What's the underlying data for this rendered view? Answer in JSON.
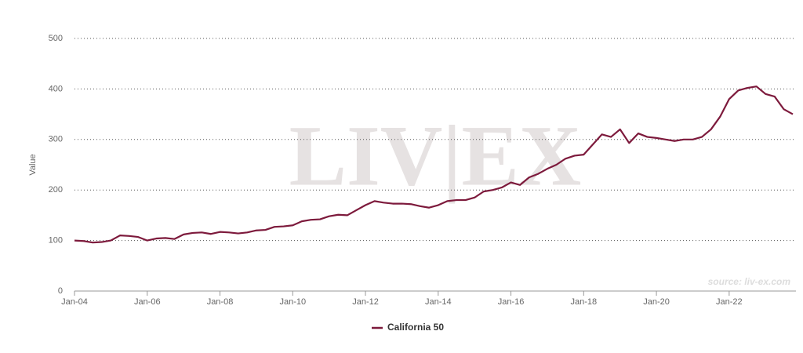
{
  "chart_data": {
    "type": "line",
    "watermark": "LIV|EX",
    "source": "source: liv-ex.com",
    "y_label": "Value",
    "x": [
      "Jan-04",
      "Apr-04",
      "Jul-04",
      "Oct-04",
      "Jan-05",
      "Apr-05",
      "Jul-05",
      "Oct-05",
      "Jan-06",
      "Apr-06",
      "Jul-06",
      "Oct-06",
      "Jan-07",
      "Apr-07",
      "Jul-07",
      "Oct-07",
      "Jan-08",
      "Apr-08",
      "Jul-08",
      "Oct-08",
      "Jan-09",
      "Apr-09",
      "Jul-09",
      "Oct-09",
      "Jan-10",
      "Apr-10",
      "Jul-10",
      "Oct-10",
      "Jan-11",
      "Apr-11",
      "Jul-11",
      "Oct-11",
      "Jan-12",
      "Apr-12",
      "Jul-12",
      "Oct-12",
      "Jan-13",
      "Apr-13",
      "Jul-13",
      "Oct-13",
      "Jan-14",
      "Apr-14",
      "Jul-14",
      "Oct-14",
      "Jan-15",
      "Apr-15",
      "Jul-15",
      "Oct-15",
      "Jan-16",
      "Apr-16",
      "Jul-16",
      "Oct-16",
      "Jan-17",
      "Apr-17",
      "Jul-17",
      "Oct-17",
      "Jan-18",
      "Apr-18",
      "Jul-18",
      "Oct-18",
      "Jan-19",
      "Apr-19",
      "Jul-19",
      "Oct-19",
      "Jan-20",
      "Apr-20",
      "Jul-20",
      "Oct-20",
      "Jan-21",
      "Apr-21",
      "Jul-21",
      "Oct-21",
      "Jan-22",
      "Apr-22",
      "Jul-22",
      "Oct-22",
      "Jan-23",
      "Apr-23",
      "Jul-23",
      "Oct-23"
    ],
    "series": [
      {
        "name": "California 50",
        "color": "#7d1a3c",
        "values": [
          100,
          99,
          96,
          97,
          100,
          110,
          109,
          107,
          100,
          104,
          105,
          103,
          112,
          115,
          116,
          113,
          117,
          116,
          114,
          116,
          120,
          121,
          127,
          128,
          130,
          138,
          141,
          142,
          148,
          151,
          150,
          160,
          170,
          178,
          175,
          173,
          173,
          172,
          168,
          165,
          170,
          178,
          180,
          180,
          185,
          197,
          200,
          205,
          215,
          210,
          225,
          232,
          242,
          250,
          262,
          268,
          270,
          290,
          310,
          305,
          320,
          293,
          312,
          305,
          303,
          300,
          297,
          300,
          300,
          305,
          320,
          345,
          380,
          397,
          402,
          405,
          390,
          385,
          360,
          350
        ]
      }
    ],
    "xlim": [
      "Jan-04",
      "Oct-23"
    ],
    "xticks": [
      "Jan-04",
      "Jan-06",
      "Jan-08",
      "Jan-10",
      "Jan-12",
      "Jan-14",
      "Jan-16",
      "Jan-18",
      "Jan-20",
      "Jan-22"
    ],
    "ylim": [
      0,
      500
    ],
    "yticks": [
      0,
      100,
      200,
      300,
      400,
      500
    ],
    "grid": true,
    "legend": "bottom"
  }
}
